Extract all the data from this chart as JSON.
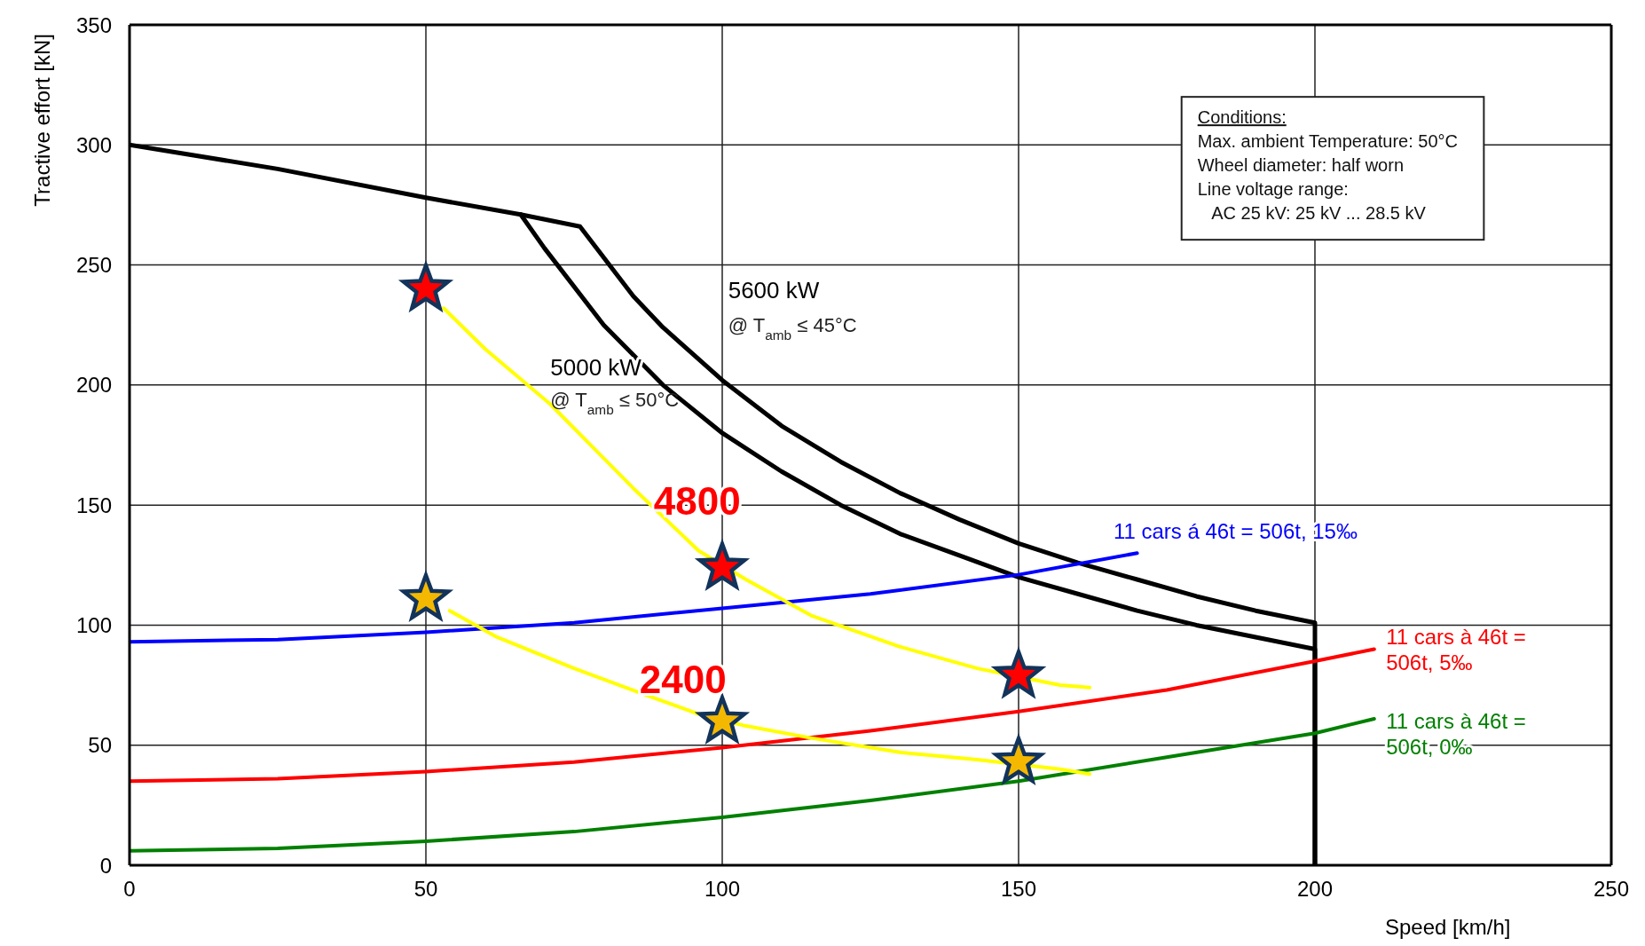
{
  "chart_data": {
    "type": "line",
    "xlabel": "Speed [km/h]",
    "ylabel": "Tractive effort [kN]",
    "xlim": [
      0,
      250
    ],
    "xticks": [
      0,
      50,
      100,
      150,
      200,
      250
    ],
    "ylim": [
      0,
      350
    ],
    "yticks": [
      0,
      50,
      100,
      150,
      200,
      250,
      300,
      350
    ],
    "grid": true,
    "legend": false,
    "marker": "none",
    "series": [
      {
        "name": "5600 kW",
        "color": "#000000",
        "x": [
          0,
          25,
          50,
          66,
          76,
          85,
          90,
          100,
          110,
          120,
          130,
          140,
          150,
          160,
          170,
          180,
          190,
          200,
          200
        ],
        "values": [
          300,
          290,
          278,
          271,
          266,
          237,
          224,
          202,
          183,
          168,
          155,
          144,
          134,
          126,
          119,
          112,
          106,
          101,
          0
        ]
      },
      {
        "name": "5000 kW",
        "color": "#000000",
        "x": [
          66,
          70,
          80,
          90,
          100,
          110,
          120,
          130,
          140,
          150,
          160,
          170,
          180,
          190,
          200,
          200
        ],
        "values": [
          271,
          257,
          225,
          200,
          180,
          164,
          150,
          138,
          129,
          120,
          113,
          106,
          100,
          95,
          90,
          0
        ]
      },
      {
        "name": "11 cars á 46t = 506t, 15‰",
        "color": "#0000ff",
        "x": [
          0,
          25,
          50,
          75,
          100,
          125,
          150,
          170
        ],
        "values": [
          93,
          94,
          97,
          101,
          107,
          113,
          121,
          130
        ]
      },
      {
        "name": "11 cars à 46t = 506t, 5‰",
        "color": "#ff0000",
        "x": [
          0,
          25,
          50,
          75,
          100,
          125,
          150,
          175,
          200,
          210
        ],
        "values": [
          35,
          36,
          39,
          43,
          49,
          56,
          64,
          73,
          85,
          90
        ]
      },
      {
        "name": "11 cars à 46t = 506t, 0‰",
        "color": "#008000",
        "x": [
          0,
          25,
          50,
          75,
          100,
          125,
          150,
          175,
          200,
          210
        ],
        "values": [
          6,
          7,
          10,
          14,
          20,
          27,
          35,
          45,
          55,
          61
        ]
      },
      {
        "color": "#ffff00",
        "x": [
          53,
          60,
          71,
          85,
          96,
          104,
          115,
          130,
          143,
          157,
          162
        ],
        "values": [
          232,
          215,
          192,
          157,
          131,
          119,
          104,
          91,
          82,
          75,
          74
        ]
      },
      {
        "color": "#ffff00",
        "x": [
          54,
          62,
          75,
          87,
          96,
          104,
          115,
          130,
          143,
          157,
          162
        ],
        "values": [
          106,
          95,
          82,
          71,
          63,
          58,
          53,
          47,
          44,
          40,
          38
        ]
      },
      {
        "type": "scatter",
        "marker": "star",
        "color": "#ff0000",
        "x": [
          50,
          100,
          150
        ],
        "values": [
          240,
          124,
          79
        ]
      },
      {
        "type": "scatter",
        "marker": "star",
        "color": "#f5b800",
        "x": [
          50,
          100,
          150
        ],
        "values": [
          111,
          60,
          43
        ]
      }
    ],
    "annotations": [
      "@ T$_{amb}$ ≤ 45°C",
      "@ T$_{amb}$ ≤ 50°C",
      "Conditions:",
      "Max. ambient Temperature: 50°C",
      "Wheel diameter: half worn",
      "Line voltage range:",
      "   AC 25 kV: 25 kV ... 28.5 kV",
      {
        "text": "4800",
        "x": 85,
        "y": 157
      },
      {
        "text": "2400",
        "x": 85,
        "y": 73
      }
    ]
  }
}
